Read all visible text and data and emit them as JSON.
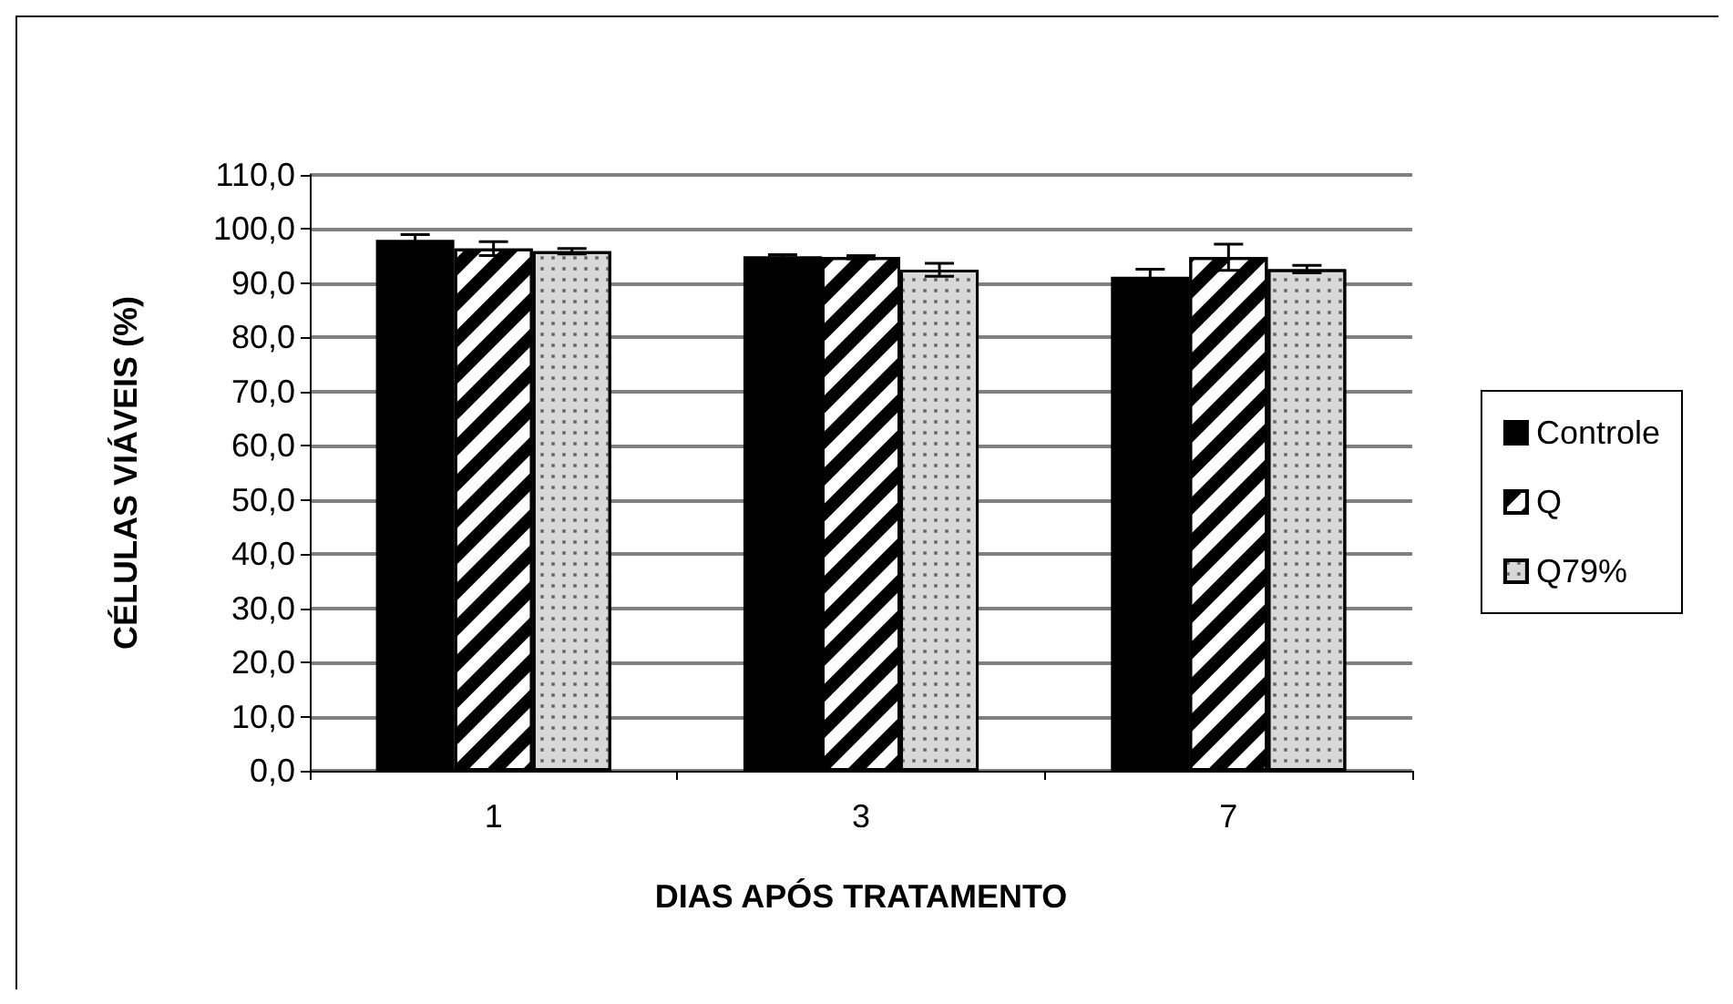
{
  "chart_data": {
    "type": "bar",
    "xlabel": "DIAS APÓS TRATAMENTO",
    "ylabel": "CÉLULAS VIÁVEIS (%)",
    "categories": [
      "1",
      "3",
      "7"
    ],
    "series": [
      {
        "name": "Controle",
        "color": "#000000",
        "values": [
          98.0,
          95.0,
          91.2
        ],
        "errors": [
          1.0,
          0.3,
          1.4
        ]
      },
      {
        "name": "Q",
        "color": "#ffffff",
        "values": [
          96.4,
          94.8,
          94.8
        ],
        "errors": [
          1.3,
          0.3,
          2.4
        ]
      },
      {
        "name": "Q79%",
        "color": "#d8d8d8",
        "values": [
          95.9,
          92.5,
          92.6
        ],
        "errors": [
          0.5,
          1.2,
          0.7
        ]
      }
    ],
    "ylim": [
      0,
      110
    ],
    "yticks": [
      {
        "value": 0,
        "label": "0,0"
      },
      {
        "value": 10,
        "label": "10,0"
      },
      {
        "value": 20,
        "label": "20,0"
      },
      {
        "value": 30,
        "label": "30,0"
      },
      {
        "value": 40,
        "label": "40,0"
      },
      {
        "value": 50,
        "label": "50,0"
      },
      {
        "value": 60,
        "label": "60,0"
      },
      {
        "value": 70,
        "label": "70,0"
      },
      {
        "value": 80,
        "label": "80,0"
      },
      {
        "value": 90,
        "label": "90,0"
      },
      {
        "value": 100,
        "label": "100,0"
      },
      {
        "value": 110,
        "label": "110,0"
      }
    ],
    "grid": "y",
    "legend": "right"
  }
}
